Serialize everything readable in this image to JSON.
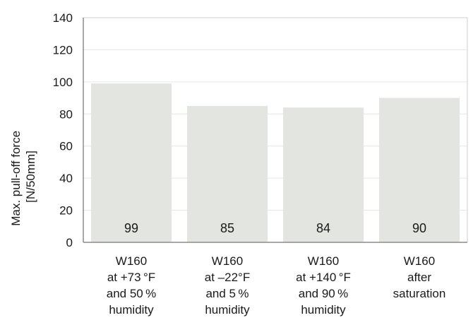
{
  "chart_data": {
    "type": "bar",
    "ylabel": [
      "Max. pull-off force",
      "[N/50mm]"
    ],
    "ylim": [
      0,
      140
    ],
    "yticks": [
      0,
      20,
      40,
      60,
      80,
      100,
      120,
      140
    ],
    "grid": true,
    "categories": [
      [
        "W160",
        "at +73 °F",
        "and 50 %",
        "humidity"
      ],
      [
        "W160",
        "at –22°F",
        "and 5 %",
        "humidity"
      ],
      [
        "W160",
        "at +140 °F",
        "and 90 %",
        "humidity"
      ],
      [
        "W160",
        "after",
        "saturation"
      ]
    ],
    "values": [
      99,
      85,
      84,
      90
    ],
    "data_labels": [
      "99",
      "85",
      "84",
      "90"
    ],
    "colors": {
      "bar": "#e3e5e1",
      "grid": "#e6e6e6",
      "axis": "#8c8c8c",
      "frame": "#cfcfcf"
    }
  }
}
